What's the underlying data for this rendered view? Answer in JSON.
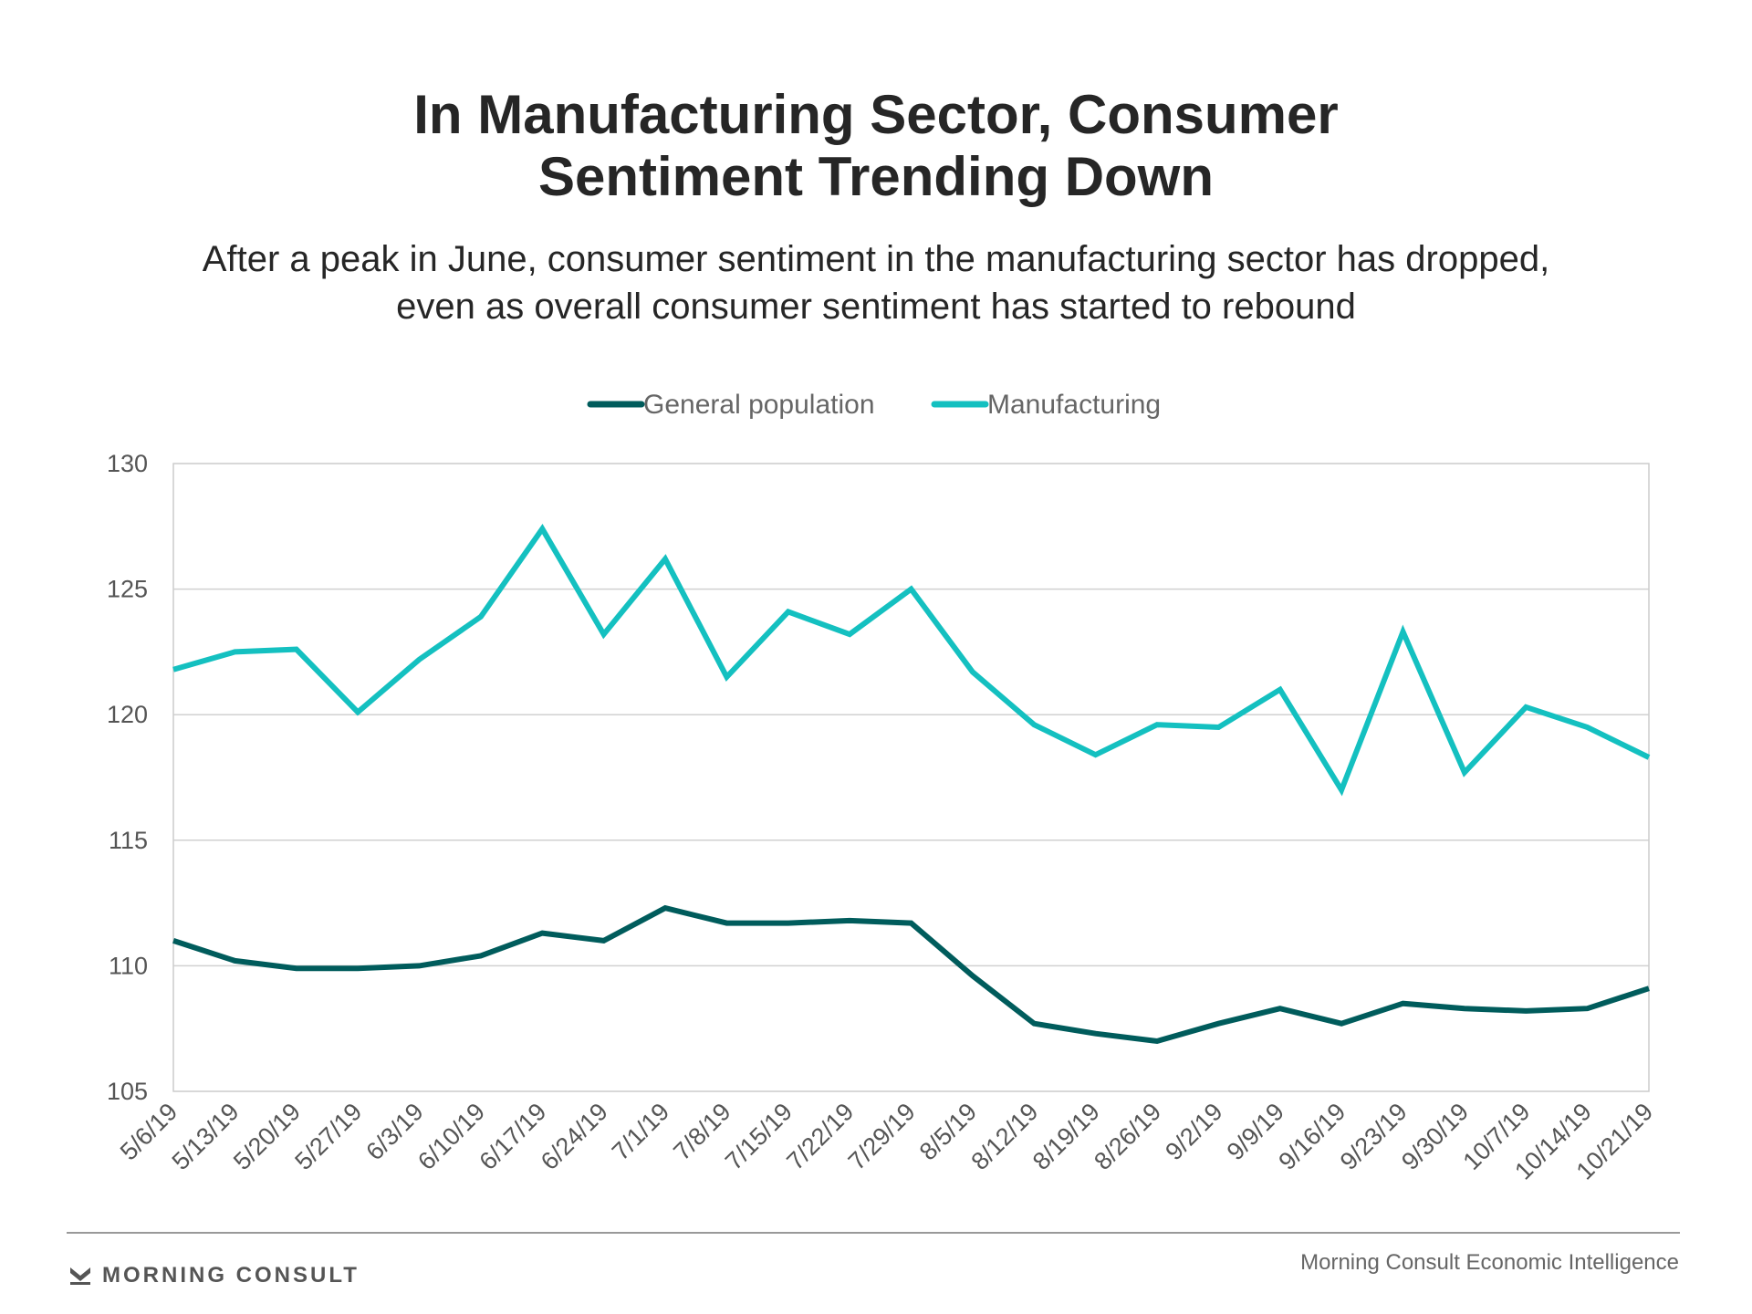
{
  "title_lines": [
    "In Manufacturing Sector, Consumer",
    "Sentiment Trending Down"
  ],
  "subtitle_lines": [
    "After a peak in June, consumer sentiment in the manufacturing sector has dropped,",
    "even as overall consumer sentiment has started to rebound"
  ],
  "footer": {
    "brand": "MORNING CONSULT",
    "source": "Morning Consult Economic Intelligence"
  },
  "chart_data": {
    "type": "line",
    "x": [
      "5/6/19",
      "5/13/19",
      "5/20/19",
      "5/27/19",
      "6/3/19",
      "6/10/19",
      "6/17/19",
      "6/24/19",
      "7/1/19",
      "7/8/19",
      "7/15/19",
      "7/22/19",
      "7/29/19",
      "8/5/19",
      "8/12/19",
      "8/19/19",
      "8/26/19",
      "9/2/19",
      "9/9/19",
      "9/16/19",
      "9/23/19",
      "9/30/19",
      "10/7/19",
      "10/14/19",
      "10/21/19"
    ],
    "series": [
      {
        "name": "General population",
        "color": "#005c5c",
        "values": [
          111.0,
          110.2,
          109.9,
          109.9,
          110.0,
          110.4,
          111.3,
          111.0,
          112.3,
          111.7,
          111.7,
          111.8,
          111.7,
          109.6,
          107.7,
          107.3,
          107.0,
          107.7,
          108.3,
          107.7,
          108.5,
          108.3,
          108.2,
          108.3,
          109.1
        ]
      },
      {
        "name": "Manufacturing",
        "color": "#14c0c0",
        "values": [
          121.8,
          122.5,
          122.6,
          120.1,
          122.2,
          123.9,
          127.4,
          123.2,
          126.2,
          121.5,
          124.1,
          123.2,
          125.0,
          121.7,
          119.6,
          118.4,
          119.6,
          119.5,
          121.0,
          117.0,
          123.3,
          117.7,
          120.3,
          119.5,
          118.3
        ]
      }
    ],
    "ylim": [
      105,
      130
    ],
    "yticks": [
      105,
      110,
      115,
      120,
      125,
      130
    ],
    "grid": true,
    "legend": "top-center",
    "title": "",
    "xlabel": "",
    "ylabel": ""
  }
}
